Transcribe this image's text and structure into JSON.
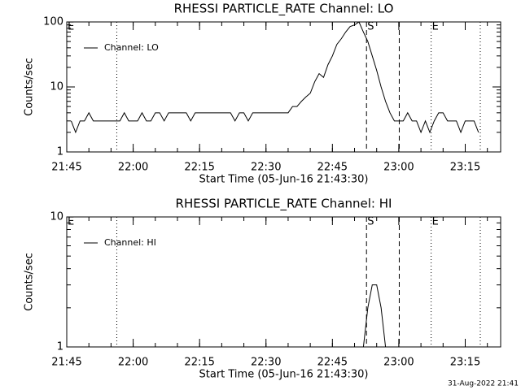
{
  "chart_data": [
    {
      "type": "line",
      "title": "RHESSI PARTICLE_RATE Channel: LO",
      "xlabel": "Start Time (05-Jun-16 21:43:30)",
      "ylabel": "Counts/sec",
      "log_y": true,
      "legend": "upper left",
      "x": [
        1306,
        1307,
        1308,
        1309,
        1310,
        1311,
        1312,
        1313,
        1314,
        1315,
        1316,
        1317,
        1318,
        1319,
        1320,
        1321,
        1322,
        1323,
        1324,
        1325,
        1326,
        1327,
        1328,
        1329,
        1330,
        1331,
        1332,
        1333,
        1334,
        1335,
        1336,
        1337,
        1338,
        1339,
        1340,
        1341,
        1342,
        1343,
        1344,
        1345,
        1346,
        1347,
        1348,
        1349,
        1350,
        1351,
        1352,
        1353,
        1354,
        1355,
        1356,
        1357,
        1358,
        1359,
        1360,
        1361,
        1362,
        1363,
        1364,
        1365,
        1366,
        1367,
        1368,
        1369,
        1370,
        1371,
        1372,
        1373,
        1374,
        1375,
        1376,
        1377,
        1378,
        1379,
        1380,
        1381,
        1382,
        1383,
        1384,
        1385,
        1386,
        1387,
        1388,
        1389,
        1390,
        1391,
        1392,
        1393,
        1394,
        1395,
        1396,
        1397,
        1398
      ],
      "series": [
        {
          "name": "Channel: LO",
          "color": "#000000",
          "values": [
            3,
            2,
            3,
            3,
            4,
            3,
            3,
            3,
            3,
            3,
            3,
            3,
            4,
            3,
            3,
            3,
            4,
            3,
            3,
            4,
            4,
            3,
            4,
            4,
            4,
            4,
            4,
            3,
            4,
            4,
            4,
            4,
            4,
            4,
            4,
            4,
            4,
            3,
            4,
            4,
            3,
            4,
            4,
            4,
            4,
            4,
            4,
            4,
            4,
            4,
            5,
            5,
            6,
            7,
            8,
            12,
            16,
            14,
            22,
            30,
            45,
            55,
            70,
            85,
            90,
            100,
            70,
            50,
            30,
            18,
            10,
            6,
            4,
            3,
            3,
            3,
            4,
            3,
            3,
            2,
            3,
            2,
            3,
            4,
            4,
            3,
            3,
            3,
            2,
            3,
            3,
            3,
            2
          ]
        }
      ],
      "xlim": [
        1305,
        1403
      ],
      "xticks": [
        {
          "value": 1305,
          "label": "21:45"
        },
        {
          "value": 1320,
          "label": "22:00"
        },
        {
          "value": 1335,
          "label": "22:15"
        },
        {
          "value": 1350,
          "label": "22:30"
        },
        {
          "value": 1365,
          "label": "22:45"
        },
        {
          "value": 1380,
          "label": "23:00"
        },
        {
          "value": 1395,
          "label": "23:15"
        }
      ],
      "ylim": [
        1,
        100
      ],
      "yticks": [
        1,
        10,
        100
      ],
      "vlines": [
        {
          "x": 1316.3,
          "style": "dotted"
        },
        {
          "x": 1372.7,
          "style": "dashed"
        },
        {
          "x": 1380.1,
          "style": "dashed"
        },
        {
          "x": 1387.3,
          "style": "dotted"
        },
        {
          "x": 1398.4,
          "style": "dotted"
        }
      ],
      "annotations": [
        {
          "text": "E",
          "x": 1305
        },
        {
          "text": "S",
          "x": 1372.7
        },
        {
          "text": "E",
          "x": 1387.3
        }
      ]
    },
    {
      "type": "line",
      "title": "RHESSI PARTICLE_RATE Channel: HI",
      "xlabel": "Start Time (05-Jun-16 21:43:30)",
      "ylabel": "Counts/sec",
      "log_y": true,
      "legend": "upper left",
      "x": [
        1306,
        1307,
        1308,
        1309,
        1310,
        1311,
        1312,
        1313,
        1314,
        1315,
        1316,
        1317,
        1318,
        1319,
        1320,
        1321,
        1322,
        1323,
        1324,
        1325,
        1326,
        1327,
        1328,
        1329,
        1330,
        1331,
        1332,
        1333,
        1334,
        1335,
        1336,
        1337,
        1338,
        1339,
        1340,
        1341,
        1342,
        1343,
        1344,
        1345,
        1346,
        1347,
        1348,
        1349,
        1350,
        1351,
        1352,
        1353,
        1354,
        1355,
        1356,
        1357,
        1358,
        1359,
        1360,
        1361,
        1362,
        1363,
        1364,
        1365,
        1366,
        1367,
        1368,
        1369,
        1370,
        1371,
        1372,
        1373,
        1374,
        1375,
        1376,
        1377,
        1378,
        1379,
        1380,
        1381,
        1382,
        1383,
        1384,
        1385,
        1386,
        1387,
        1388,
        1389,
        1390,
        1391,
        1392,
        1393,
        1394,
        1395,
        1396,
        1397,
        1398
      ],
      "series": [
        {
          "name": "Channel: HI",
          "color": "#000000",
          "values": [
            1,
            1,
            1,
            1,
            1,
            1,
            1,
            1,
            1,
            1,
            1,
            1,
            1,
            1,
            1,
            1,
            1,
            1,
            1,
            1,
            1,
            1,
            1,
            1,
            1,
            1,
            1,
            1,
            1,
            1,
            1,
            1,
            1,
            1,
            1,
            1,
            1,
            1,
            1,
            1,
            1,
            1,
            1,
            1,
            1,
            1,
            1,
            1,
            1,
            1,
            1,
            1,
            1,
            1,
            1,
            1,
            1,
            1,
            1,
            1,
            1,
            1,
            1,
            1,
            1,
            1,
            1,
            2,
            3,
            3,
            2,
            1,
            1,
            1,
            1,
            1,
            1,
            1,
            1,
            1,
            1,
            1,
            1,
            1,
            1,
            1,
            1,
            1,
            1,
            1,
            1,
            1,
            1
          ]
        }
      ],
      "xlim": [
        1305,
        1403
      ],
      "xticks": [
        {
          "value": 1305,
          "label": "21:45"
        },
        {
          "value": 1320,
          "label": "22:00"
        },
        {
          "value": 1335,
          "label": "22:15"
        },
        {
          "value": 1350,
          "label": "22:30"
        },
        {
          "value": 1365,
          "label": "22:45"
        },
        {
          "value": 1380,
          "label": "23:00"
        },
        {
          "value": 1395,
          "label": "23:15"
        }
      ],
      "ylim": [
        1,
        10
      ],
      "yticks": [
        1,
        10
      ],
      "vlines": [
        {
          "x": 1316.3,
          "style": "dotted"
        },
        {
          "x": 1372.7,
          "style": "dashed"
        },
        {
          "x": 1380.1,
          "style": "dashed"
        },
        {
          "x": 1387.3,
          "style": "dotted"
        },
        {
          "x": 1398.4,
          "style": "dotted"
        }
      ],
      "annotations": [
        {
          "text": "E",
          "x": 1305
        },
        {
          "text": "S",
          "x": 1372.7
        },
        {
          "text": "E",
          "x": 1387.3
        }
      ]
    }
  ],
  "timestamp": "31-Aug-2022 21:41"
}
